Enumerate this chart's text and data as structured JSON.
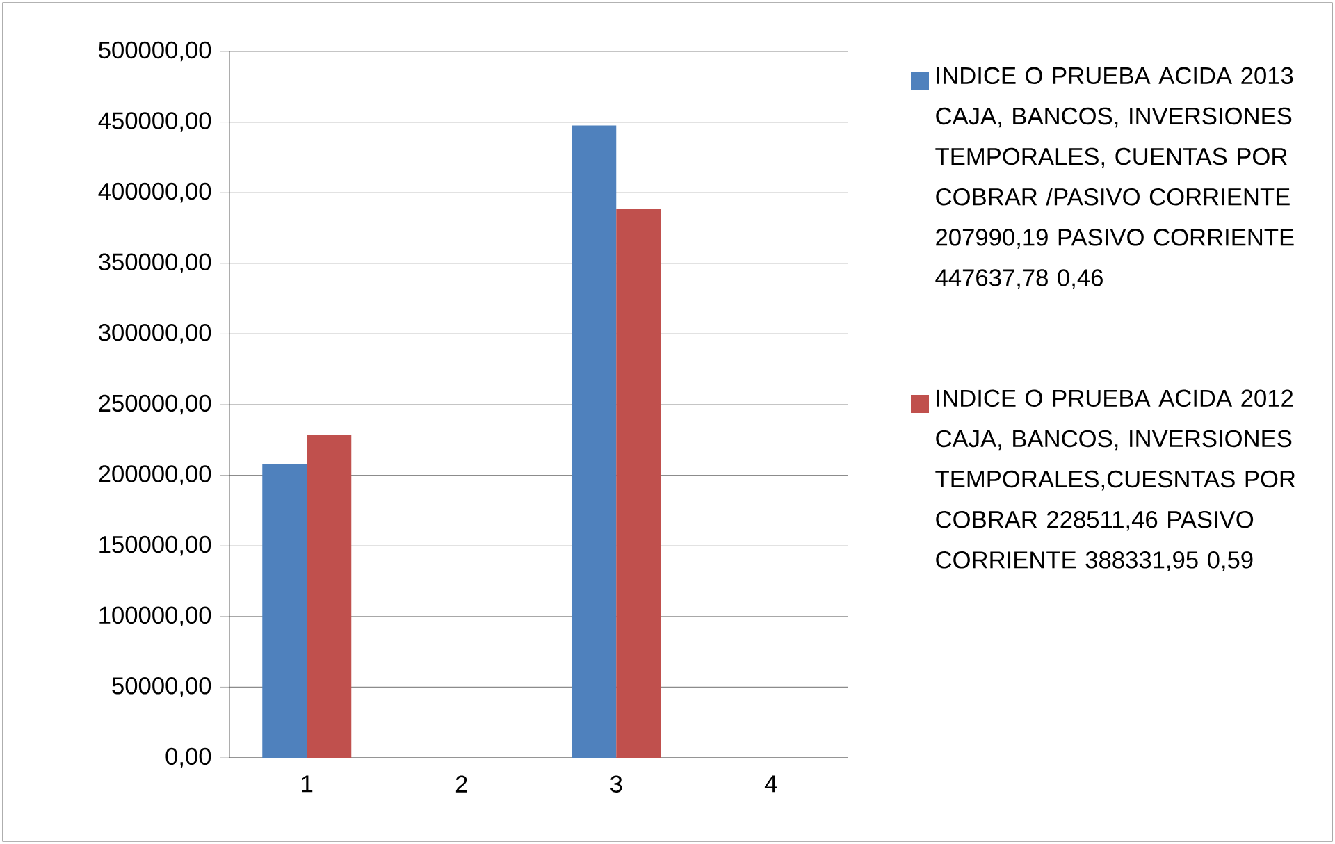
{
  "chart_data": {
    "type": "bar",
    "categories": [
      "1",
      "2",
      "3",
      "4"
    ],
    "series": [
      {
        "name": "INDICE O PRUEBA ACIDA 2013 CAJA, BANCOS, INVERSIONES TEMPORALES, CUENTAS POR COBRAR /PASIVO CORRIENTE 207990,19 PASIVO CORRIENTE 447637,78 0,46",
        "color": "#4f81bd",
        "values": [
          207990.19,
          null,
          447637.78,
          null
        ]
      },
      {
        "name": "INDICE O PRUEBA ACIDA 2012 CAJA, BANCOS, INVERSIONES TEMPORALES,CUESNTAS POR COBRAR 228511,46 PASIVO CORRIENTE 388331,95 0,59",
        "color": "#c0504d",
        "values": [
          228511.46,
          null,
          388331.95,
          null
        ]
      }
    ],
    "ylim": [
      0,
      500000
    ],
    "yticks": [
      {
        "value": 0,
        "label": "0,00"
      },
      {
        "value": 50000,
        "label": "50000,00"
      },
      {
        "value": 100000,
        "label": "100000,00"
      },
      {
        "value": 150000,
        "label": "150000,00"
      },
      {
        "value": 200000,
        "label": "200000,00"
      },
      {
        "value": 250000,
        "label": "250000,00"
      },
      {
        "value": 300000,
        "label": "300000,00"
      },
      {
        "value": 350000,
        "label": "350000,00"
      },
      {
        "value": 400000,
        "label": "400000,00"
      },
      {
        "value": 450000,
        "label": "450000,00"
      },
      {
        "value": 500000,
        "label": "500000,00"
      }
    ],
    "grid": "y",
    "legend": "right"
  }
}
